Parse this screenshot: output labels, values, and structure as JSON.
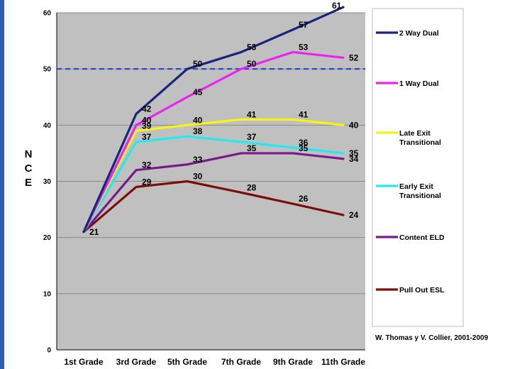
{
  "chart_data": {
    "type": "line",
    "ylabel": "N C E",
    "ylim": [
      0,
      60
    ],
    "yticks": [
      0,
      10,
      20,
      30,
      40,
      50,
      60
    ],
    "categories": [
      "1st Grade",
      "3rd Grade",
      "5th Grade",
      "7th Grade",
      "9th Grade",
      "11th Grade"
    ],
    "reference_line": {
      "y": 50,
      "style": "dashed",
      "color": "#1f3bd6"
    },
    "grid": true,
    "legend": "right",
    "series": [
      {
        "name": "2 Way Dual",
        "color": "#1a237e",
        "values": [
          21,
          42,
          50,
          53,
          57,
          61
        ]
      },
      {
        "name": "1 Way Dual",
        "color": "#ee22ee",
        "values": [
          21,
          40,
          45,
          50,
          53,
          52
        ]
      },
      {
        "name": "Late Exit Transitional",
        "color": "#f5f514",
        "values": [
          21,
          39,
          40,
          41,
          41,
          40
        ]
      },
      {
        "name": "Early Exit Transitional",
        "color": "#22eaf0",
        "values": [
          21,
          37,
          38,
          37,
          36,
          35
        ]
      },
      {
        "name": "Content ELD",
        "color": "#7a1a8a",
        "values": [
          21,
          32,
          33,
          35,
          35,
          34
        ]
      },
      {
        "name": "Pull Out ESL",
        "color": "#7a0e0e",
        "values": [
          21,
          29,
          30,
          28,
          26,
          24
        ]
      }
    ],
    "first_point_label": "21"
  },
  "credit": "W. Thomas y V. Collier, 2001-2009",
  "colors": {
    "plot_bg": "#c0c0c0",
    "gridline": "#8a8a8a",
    "legend_bg": "#ffffff"
  }
}
